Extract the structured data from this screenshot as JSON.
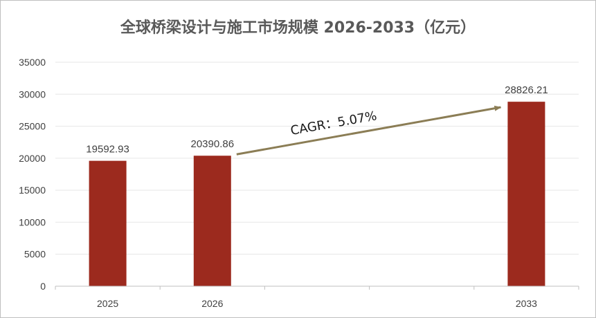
{
  "chart_data": {
    "type": "bar",
    "title": "全球桥梁设计与施工市场规模 2026-2033（亿元）",
    "categories": [
      "2025",
      "2026",
      "",
      "",
      "2033"
    ],
    "values": [
      19592.93,
      20390.86,
      null,
      null,
      28826.21
    ],
    "data_labels": [
      "19592.93",
      "20390.86",
      "",
      "",
      "28826.21"
    ],
    "ylim": [
      0,
      35000
    ],
    "y_ticks": [
      0,
      5000,
      10000,
      15000,
      20000,
      25000,
      30000,
      35000
    ],
    "grid": true,
    "legend": "none",
    "annotation": {
      "text": "CAGR：5.07%",
      "from_category": "2026",
      "to_category": "2033"
    },
    "colors": {
      "bar": "#9c2a1e",
      "arrow": "#8b7d55",
      "grid": "#e6e6e6",
      "axis": "#bfbfbf"
    }
  }
}
